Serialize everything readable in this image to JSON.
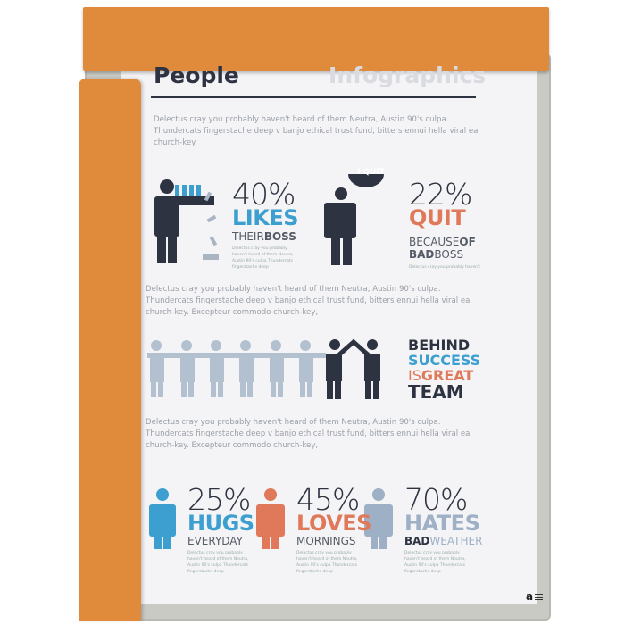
{
  "header": {
    "title": "People",
    "subtitle": "Infographics"
  },
  "intro": "Delectus cray you probably haven't heard of them Neutra, Austin 90's culpa. Thundercats fingerstache deep v banjo ethical trust fund, bitters ennui hella viral ea church-key.",
  "para2": "Delectus cray you probably haven't heard of them Neutra, Austin 90's culpa. Thundercats fingerstache deep v banjo ethical trust fund, bitters ennui hella viral ea church-key.  Excepteur commodo church-key,",
  "para3": "Delectus cray you probably haven't heard of them Neutra, Austin 90's culpa. Thundercats fingerstache deep v banjo ethical trust fund, bitters ennui hella viral ea church-key.  Excepteur commodo church-key,",
  "stats": [
    {
      "pct": "40%",
      "word": "LIKES",
      "sub1": "THEIR",
      "sub2": "BOSS",
      "small": "Delectus cray you probably haven't heard of them Neutra, Austin 90's culpa Thundercats fingerstache deep",
      "color": "#3d9fd0"
    },
    {
      "pct": "22%",
      "word": "QUIT",
      "sub1": "BECAUSE",
      "sub2": "OF",
      "sub3": "BAD",
      "sub4": "BOSS",
      "small": "Delectus cray you probably haven't",
      "bubble": "I QUIT",
      "color": "#e0795a"
    },
    {
      "pct": "25%",
      "word": "HUGS",
      "sub1": "EVERYDAY",
      "small": "Delectus cray you probably haven't heard of them Neutra, Austin 90's culpa Thundercats fingerstache deep",
      "color": "#3d9fd0"
    },
    {
      "pct": "45%",
      "word": "LOVES",
      "sub1": "MORNINGS",
      "small": "Delectus cray you probably haven't heard of them Neutra, Austin 90's culpa Thundercats fingerstache deep",
      "color": "#e0795a"
    },
    {
      "pct": "70%",
      "word": "HATES",
      "sub1": "BAD",
      "sub2": "WEATHER",
      "small": "Delectus cray you probably haven't heard of them Neutra, Austin 90's culpa Thundercats fingerstache deep",
      "color": "#9eb0c6"
    }
  ],
  "team": {
    "l1": "BEHIND",
    "l2": "SUCCESS",
    "l3a": "IS",
    "l3b": "GREAT",
    "l4": "TEAM"
  },
  "logo": "a",
  "colors": {
    "orange": "#e08a3c",
    "dark": "#2d3340",
    "blue": "#3d9fd0",
    "red": "#e0795a",
    "grey": "#9eb0c6"
  }
}
